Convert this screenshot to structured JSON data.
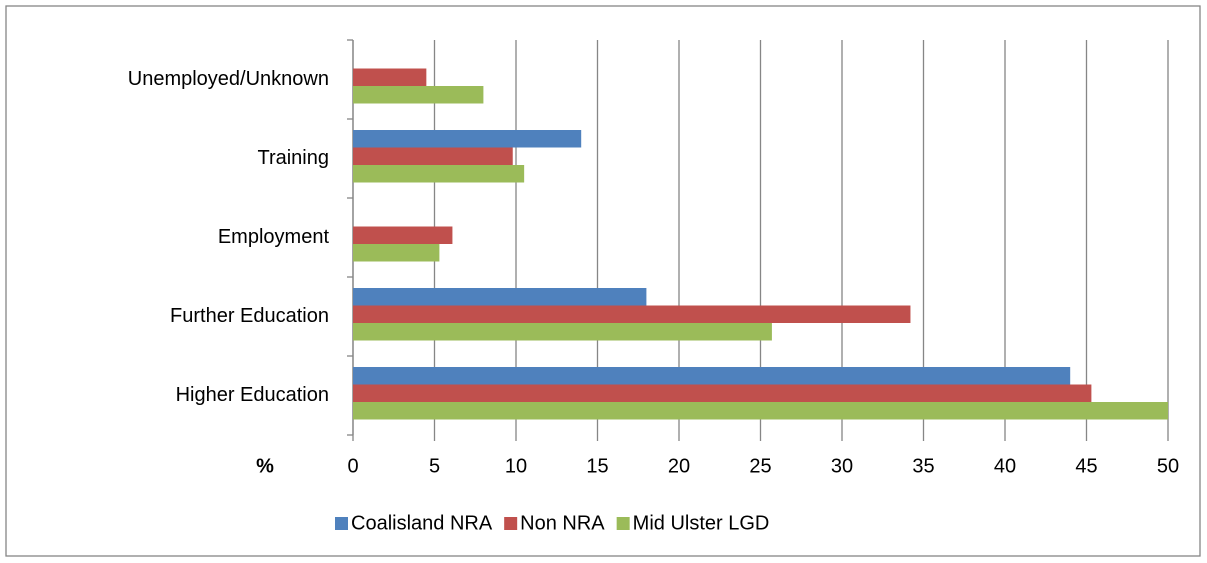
{
  "chart_data": {
    "type": "bar",
    "orientation": "horizontal",
    "x_label": "%",
    "categories": [
      "Unemployed/Unknown",
      "Training",
      "Employment",
      "Further Education",
      "Higher Education"
    ],
    "series": [
      {
        "name": "Coalisland NRA",
        "color": "#4f81bd",
        "values": [
          0,
          14.0,
          0,
          18.0,
          44.0
        ]
      },
      {
        "name": "Non NRA",
        "color": "#c0504d",
        "values": [
          4.5,
          9.8,
          6.1,
          34.2,
          45.3
        ]
      },
      {
        "name": "Mid Ulster LGD",
        "color": "#9bbb59",
        "values": [
          8.0,
          10.5,
          5.3,
          25.7,
          50.0
        ]
      }
    ],
    "xlim": [
      0,
      50
    ],
    "xticks": [
      0,
      5,
      10,
      15,
      20,
      25,
      30,
      35,
      40,
      45,
      50
    ],
    "grid": true,
    "legend": "bottom"
  }
}
